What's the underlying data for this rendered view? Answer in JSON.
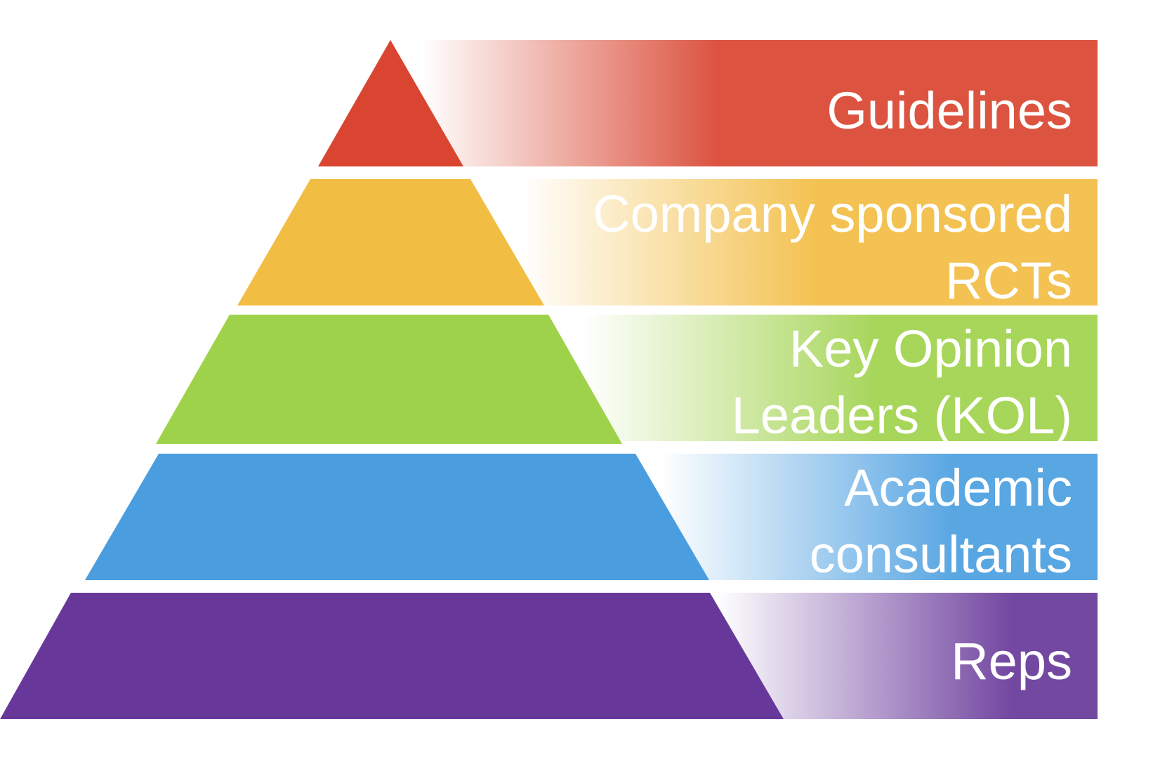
{
  "tiers": [
    {
      "id": "guidelines",
      "lines": [
        "Guidelines"
      ],
      "color": "#d94530"
    },
    {
      "id": "company-sponsored-rcts",
      "lines": [
        "Company sponsored",
        "RCTs"
      ],
      "color": "#f2bd43"
    },
    {
      "id": "key-opinion-leaders",
      "lines": [
        "Key Opinion",
        "Leaders (KOL)"
      ],
      "color": "#9fd24b"
    },
    {
      "id": "academic-consultants",
      "lines": [
        "Academic",
        "consultants"
      ],
      "color": "#4a9ee0"
    },
    {
      "id": "reps",
      "lines": [
        "Reps"
      ],
      "color": "#673899"
    }
  ]
}
